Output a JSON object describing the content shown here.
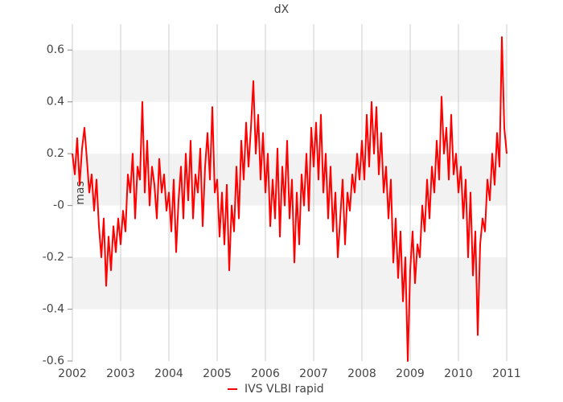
{
  "chart_data": {
    "type": "line",
    "title": "dX",
    "y_label": "mas",
    "xlim": [
      2002,
      2011
    ],
    "xticks": [
      2002,
      2003,
      2004,
      2005,
      2006,
      2007,
      2008,
      2009,
      2010,
      2011
    ],
    "ylim": [
      -0.6,
      0.7
    ],
    "yticks": [
      -0.6,
      -0.4,
      -0.2,
      {
        "value": 0,
        "label": "-0"
      },
      0.2,
      0.4,
      0.6
    ],
    "grid": true,
    "legend": "bottom",
    "x": [
      2002,
      2002.05,
      2002.1,
      2002.15,
      2002.2,
      2002.25,
      2002.3,
      2002.35,
      2002.4,
      2002.45,
      2002.5,
      2002.55,
      2002.6,
      2002.65,
      2002.7,
      2002.75,
      2002.8,
      2002.85,
      2002.9,
      2002.95,
      2003,
      2003.05,
      2003.1,
      2003.15,
      2003.2,
      2003.25,
      2003.3,
      2003.35,
      2003.4,
      2003.45,
      2003.5,
      2003.55,
      2003.6,
      2003.65,
      2003.7,
      2003.75,
      2003.8,
      2003.85,
      2003.9,
      2003.95,
      2004,
      2004.05,
      2004.1,
      2004.15,
      2004.2,
      2004.25,
      2004.3,
      2004.35,
      2004.4,
      2004.45,
      2004.5,
      2004.55,
      2004.6,
      2004.65,
      2004.7,
      2004.75,
      2004.8,
      2004.85,
      2004.9,
      2004.95,
      2005,
      2005.05,
      2005.1,
      2005.15,
      2005.2,
      2005.25,
      2005.3,
      2005.35,
      2005.4,
      2005.45,
      2005.5,
      2005.55,
      2005.6,
      2005.65,
      2005.7,
      2005.75,
      2005.8,
      2005.85,
      2005.9,
      2005.95,
      2006,
      2006.05,
      2006.1,
      2006.15,
      2006.2,
      2006.25,
      2006.3,
      2006.35,
      2006.4,
      2006.45,
      2006.5,
      2006.55,
      2006.6,
      2006.65,
      2006.7,
      2006.75,
      2006.8,
      2006.85,
      2006.9,
      2006.95,
      2007,
      2007.05,
      2007.1,
      2007.15,
      2007.2,
      2007.25,
      2007.3,
      2007.35,
      2007.4,
      2007.45,
      2007.5,
      2007.55,
      2007.6,
      2007.65,
      2007.7,
      2007.75,
      2007.8,
      2007.85,
      2007.9,
      2007.95,
      2008,
      2008.05,
      2008.1,
      2008.15,
      2008.2,
      2008.25,
      2008.3,
      2008.35,
      2008.4,
      2008.45,
      2008.5,
      2008.55,
      2008.6,
      2008.65,
      2008.7,
      2008.75,
      2008.8,
      2008.85,
      2008.9,
      2008.95,
      2009,
      2009.05,
      2009.1,
      2009.15,
      2009.2,
      2009.25,
      2009.3,
      2009.35,
      2009.4,
      2009.45,
      2009.5,
      2009.55,
      2009.6,
      2009.65,
      2009.7,
      2009.75,
      2009.8,
      2009.85,
      2009.9,
      2009.95,
      2010,
      2010.05,
      2010.1,
      2010.15,
      2010.2,
      2010.25,
      2010.3,
      2010.35,
      2010.4,
      2010.45,
      2010.5,
      2010.55,
      2010.6,
      2010.65,
      2010.7,
      2010.75,
      2010.8,
      2010.85,
      2010.9,
      2010.95,
      2011
    ],
    "series": [
      {
        "name": "IVS VLBI rapid",
        "color": "#ff0000",
        "values": [
          0.2,
          0.12,
          0.26,
          0.08,
          0.22,
          0.3,
          0.18,
          0.05,
          0.12,
          -0.02,
          0.1,
          -0.08,
          -0.2,
          -0.05,
          -0.31,
          -0.12,
          -0.25,
          -0.08,
          -0.18,
          -0.05,
          -0.15,
          -0.02,
          -0.1,
          0.12,
          0.05,
          0.2,
          -0.05,
          0.15,
          0.1,
          0.4,
          0.05,
          0.25,
          0.0,
          0.15,
          0.08,
          -0.05,
          0.18,
          0.05,
          0.12,
          -0.02,
          0.05,
          -0.1,
          0.1,
          -0.18,
          0.02,
          0.15,
          -0.05,
          0.2,
          0.02,
          0.25,
          -0.05,
          0.12,
          0.05,
          0.22,
          -0.08,
          0.15,
          0.28,
          0.1,
          0.38,
          0.05,
          0.1,
          -0.12,
          0.05,
          -0.15,
          0.08,
          -0.25,
          0.0,
          -0.1,
          0.15,
          -0.05,
          0.25,
          0.1,
          0.32,
          0.15,
          0.3,
          0.48,
          0.2,
          0.35,
          0.1,
          0.28,
          0.05,
          0.2,
          -0.08,
          0.1,
          -0.05,
          0.22,
          -0.12,
          0.15,
          0.0,
          0.25,
          -0.05,
          0.1,
          -0.22,
          0.05,
          -0.15,
          0.12,
          0.0,
          0.2,
          -0.02,
          0.3,
          0.15,
          0.32,
          0.1,
          0.35,
          0.05,
          0.2,
          -0.05,
          0.15,
          -0.1,
          0.05,
          -0.2,
          -0.05,
          0.1,
          -0.15,
          0.05,
          -0.02,
          0.12,
          0.05,
          0.2,
          0.1,
          0.25,
          0.1,
          0.35,
          0.15,
          0.4,
          0.2,
          0.38,
          0.12,
          0.28,
          0.05,
          0.15,
          -0.05,
          0.1,
          -0.22,
          -0.05,
          -0.28,
          -0.1,
          -0.37,
          -0.2,
          -0.6,
          -0.25,
          -0.1,
          -0.3,
          -0.15,
          -0.2,
          0.0,
          -0.1,
          0.1,
          -0.05,
          0.15,
          0.05,
          0.25,
          0.1,
          0.42,
          0.2,
          0.3,
          0.1,
          0.35,
          0.12,
          0.2,
          0.05,
          0.15,
          -0.05,
          0.1,
          -0.2,
          0.05,
          -0.27,
          -0.1,
          -0.5,
          -0.15,
          -0.05,
          -0.1,
          0.1,
          0.02,
          0.2,
          0.08,
          0.28,
          0.15,
          0.65,
          0.3,
          0.2
        ]
      }
    ]
  }
}
